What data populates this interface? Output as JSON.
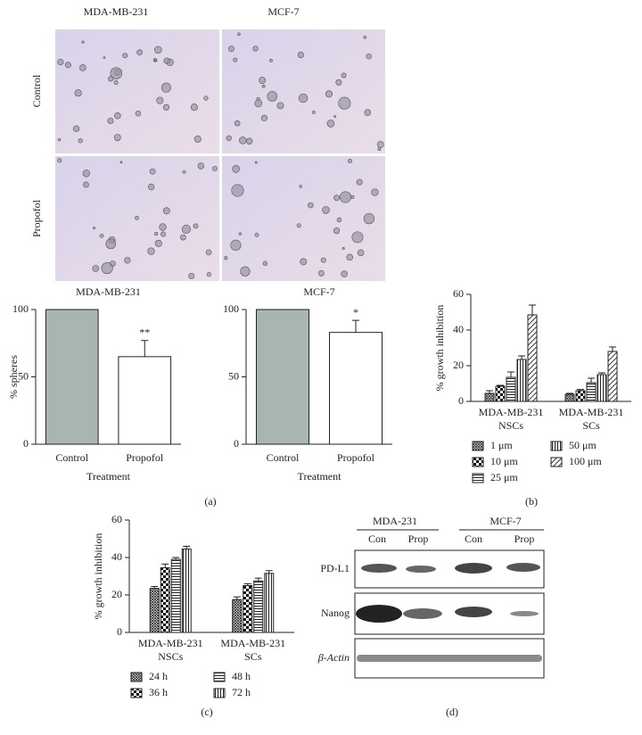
{
  "micrographs": {
    "columns": [
      "MDA-MB-231",
      "MCF-7"
    ],
    "rows": [
      "Control",
      "Propofol"
    ]
  },
  "chart_data": [
    {
      "type": "bar",
      "title": "MDA-MB-231",
      "ylabel": "% spheres",
      "xlabel": "Treatment",
      "categories": [
        "Control",
        "Propofol"
      ],
      "values": [
        100,
        65
      ],
      "errors": [
        0,
        12
      ],
      "annotations": [
        null,
        "**"
      ],
      "colors": [
        "#a9b5b1",
        "#ffffff"
      ],
      "ylim": [
        0,
        100
      ],
      "yticks": [
        0,
        50,
        100
      ]
    },
    {
      "type": "bar",
      "title": "MCF-7",
      "xlabel": "Treatment",
      "categories": [
        "Control",
        "Propofol"
      ],
      "values": [
        100,
        83
      ],
      "errors": [
        0,
        9
      ],
      "annotations": [
        null,
        "*"
      ],
      "colors": [
        "#a9b5b1",
        "#ffffff"
      ],
      "ylim": [
        0,
        100
      ],
      "yticks": [
        0,
        50,
        100
      ]
    },
    {
      "type": "grouped_bar",
      "ylabel": "% growth inhibition",
      "categories": [
        [
          "MDA-MB-231",
          "NSCs"
        ],
        [
          "MDA-MB-231",
          "SCs"
        ]
      ],
      "series": [
        {
          "name": "1 μm",
          "pattern": "crosshatch",
          "values": [
            4.5,
            4
          ],
          "errors": [
            1.5,
            0.5
          ]
        },
        {
          "name": "10 μm",
          "pattern": "checker",
          "values": [
            8.5,
            6
          ],
          "errors": [
            0.5,
            0.7
          ]
        },
        {
          "name": "25 μm",
          "pattern": "hlines",
          "values": [
            13.5,
            10.5
          ],
          "errors": [
            3,
            2.5
          ]
        },
        {
          "name": "50 μm",
          "pattern": "vlines",
          "values": [
            23.5,
            15
          ],
          "errors": [
            2,
            1
          ]
        },
        {
          "name": "100 μm",
          "pattern": "diagonal",
          "values": [
            48.5,
            28
          ],
          "errors": [
            5.5,
            2.5
          ]
        }
      ],
      "ylim": [
        0,
        60
      ],
      "yticks": [
        0,
        20,
        40,
        60
      ]
    },
    {
      "type": "grouped_bar",
      "ylabel": "% growth inhibition",
      "categories": [
        [
          "MDA-MB-231",
          "NSCs"
        ],
        [
          "MDA-MB-231",
          "SCs"
        ]
      ],
      "series": [
        {
          "name": "24 h",
          "pattern": "crosshatch",
          "values": [
            23.5,
            17.5
          ],
          "errors": [
            1,
            1.5
          ]
        },
        {
          "name": "36 h",
          "pattern": "checker",
          "values": [
            34.5,
            25
          ],
          "errors": [
            2,
            1
          ]
        },
        {
          "name": "48 h",
          "pattern": "hlines",
          "values": [
            39,
            27.5
          ],
          "errors": [
            1,
            1.5
          ]
        },
        {
          "name": "72 h",
          "pattern": "vlines",
          "values": [
            44.5,
            31.5
          ],
          "errors": [
            1.5,
            1.5
          ]
        }
      ],
      "ylim": [
        0,
        60
      ],
      "yticks": [
        0,
        20,
        40,
        60
      ]
    }
  ],
  "blot": {
    "groups": [
      "MDA-231",
      "MCF-7"
    ],
    "lanes": [
      "Con",
      "Prop",
      "Con",
      "Prop"
    ],
    "rows": [
      "PD-L1",
      "Nanog",
      "β-Actin"
    ]
  },
  "panel_labels": [
    "(a)",
    "(b)",
    "(c)",
    "(d)"
  ]
}
